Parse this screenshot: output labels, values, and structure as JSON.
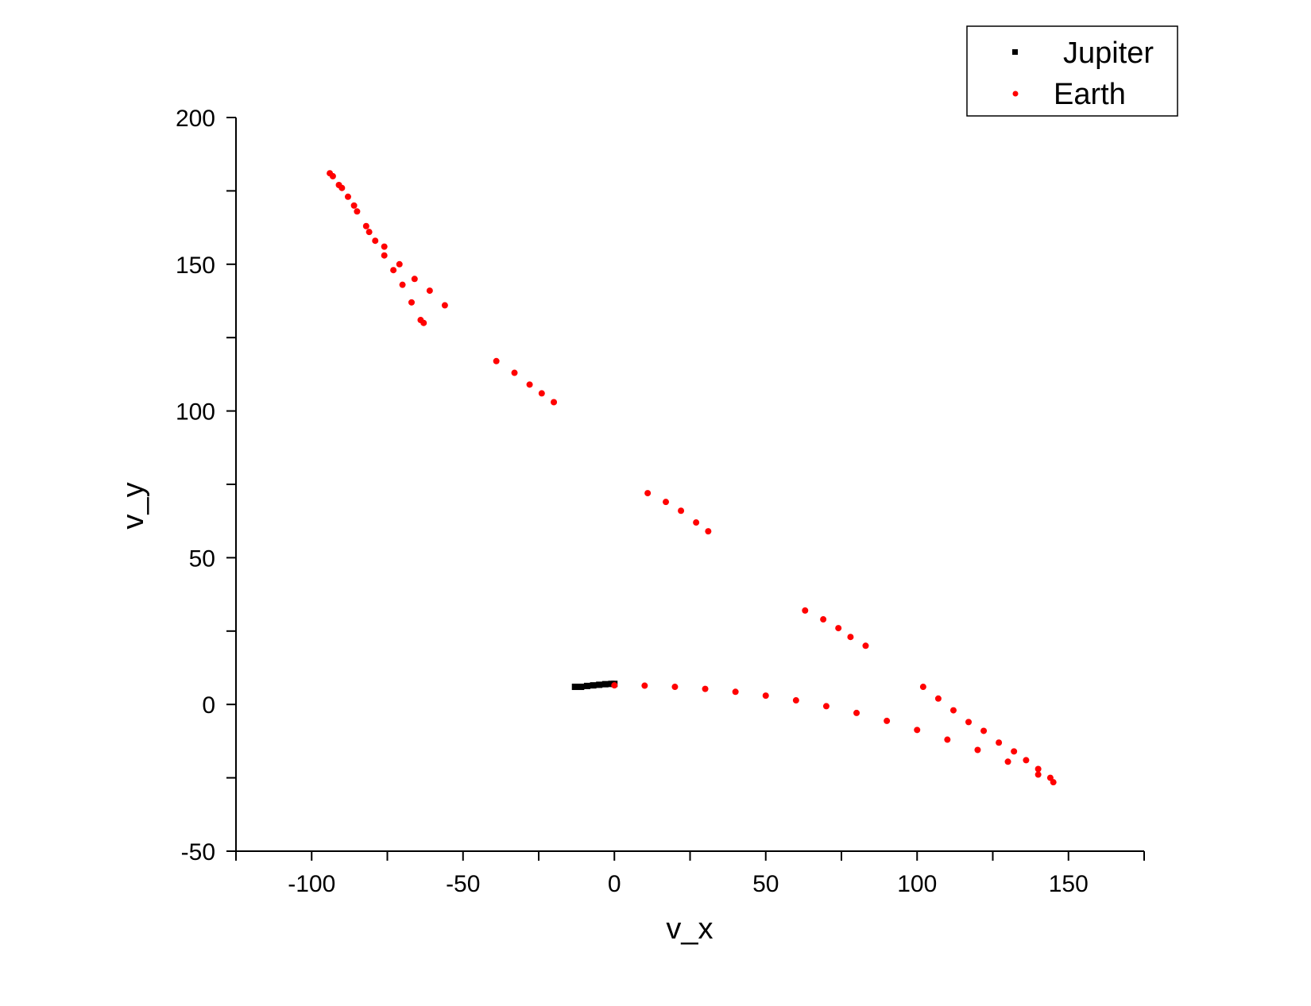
{
  "chart_data": {
    "type": "scatter",
    "title": "",
    "xlabel": "v_x",
    "ylabel": "v_y",
    "xlim": [
      -125,
      175
    ],
    "ylim": [
      -50,
      200
    ],
    "x_ticks": [
      -100,
      -50,
      0,
      50,
      100,
      150
    ],
    "x_tick_labels": [
      "-100",
      "-50",
      "0",
      "50",
      "100",
      "150"
    ],
    "y_ticks": [
      -50,
      0,
      50,
      100,
      150,
      200
    ],
    "y_tick_labels": [
      "-50",
      "0",
      "50",
      "100",
      "150",
      "200"
    ],
    "grid": false,
    "legend_position": "top-right",
    "colors": {
      "Jupiter": "#000000",
      "Earth": "#ff0000"
    },
    "series": [
      {
        "name": "Jupiter",
        "marker": "square",
        "points": [
          [
            -13,
            6.0
          ],
          [
            -11,
            6.0
          ],
          [
            -9,
            6.3
          ],
          [
            -7,
            6.5
          ],
          [
            -5,
            6.7
          ],
          [
            -3,
            6.9
          ],
          [
            -1,
            7.0
          ],
          [
            0,
            7.0
          ]
        ]
      },
      {
        "name": "Earth",
        "marker": "circle",
        "points": [
          [
            0,
            6.5
          ],
          [
            10,
            6.4
          ],
          [
            20,
            6.0
          ],
          [
            30,
            5.3
          ],
          [
            40,
            4.3
          ],
          [
            50,
            3.0
          ],
          [
            60,
            1.4
          ],
          [
            70,
            -0.6
          ],
          [
            80,
            -2.9
          ],
          [
            90,
            -5.6
          ],
          [
            100,
            -8.7
          ],
          [
            110,
            -12.0
          ],
          [
            120,
            -15.5
          ],
          [
            130,
            -19.5
          ],
          [
            140,
            -23.9
          ],
          [
            145,
            -26.5
          ],
          [
            -94,
            181
          ],
          [
            -91,
            177
          ],
          [
            -88,
            173
          ],
          [
            -85,
            168
          ],
          [
            -82,
            163
          ],
          [
            -79,
            158
          ],
          [
            -76,
            153
          ],
          [
            -73,
            148
          ],
          [
            -70,
            143
          ],
          [
            -67,
            137
          ],
          [
            -64,
            131
          ],
          [
            -63,
            130
          ],
          [
            -93,
            180
          ],
          [
            -90,
            176
          ],
          [
            -86,
            170
          ],
          [
            -81,
            161
          ],
          [
            -76,
            156
          ],
          [
            -71,
            150
          ],
          [
            -66,
            145
          ],
          [
            -61,
            141
          ],
          [
            -56,
            136
          ],
          [
            -39,
            117
          ],
          [
            -33,
            113
          ],
          [
            -28,
            109
          ],
          [
            -24,
            106
          ],
          [
            -20,
            103
          ],
          [
            11,
            72
          ],
          [
            17,
            69
          ],
          [
            22,
            66
          ],
          [
            27,
            62
          ],
          [
            31,
            59
          ],
          [
            63,
            32
          ],
          [
            69,
            29
          ],
          [
            74,
            26
          ],
          [
            78,
            23
          ],
          [
            83,
            20
          ],
          [
            102,
            6
          ],
          [
            107,
            2
          ],
          [
            112,
            -2
          ],
          [
            117,
            -6
          ],
          [
            122,
            -9
          ],
          [
            127,
            -13
          ],
          [
            132,
            -16
          ],
          [
            136,
            -19
          ],
          [
            140,
            -22
          ],
          [
            144,
            -25
          ]
        ]
      }
    ]
  }
}
